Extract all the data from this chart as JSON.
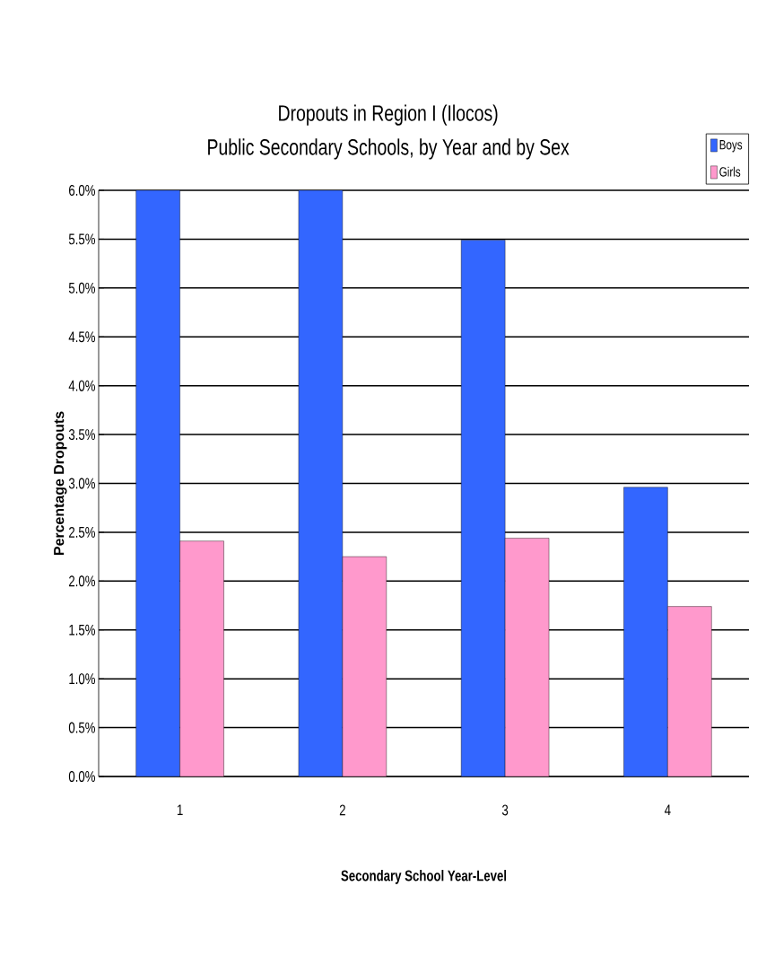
{
  "chart_data": {
    "type": "bar",
    "title": "Dropouts in Region I (Ilocos)",
    "subtitle": "Public Secondary Schools, by Year and by Sex",
    "xlabel": "Secondary School Year-Level",
    "ylabel": "Percentage  Dropouts",
    "categories": [
      "1",
      "2",
      "3",
      "4"
    ],
    "series": [
      {
        "name": "Boys",
        "color": "#3366ff",
        "values": [
          6.0,
          6.0,
          5.49,
          2.96
        ]
      },
      {
        "name": "Girls",
        "color": "#ff99cc",
        "values": [
          2.41,
          2.25,
          2.44,
          1.74
        ]
      }
    ],
    "ylim": [
      0,
      6
    ],
    "yticks": [
      {
        "value": 0,
        "label": "0.0%"
      },
      {
        "value": 0.5,
        "label": "0.5%"
      },
      {
        "value": 1,
        "label": "1.0%"
      },
      {
        "value": 1.5,
        "label": "1.5%"
      },
      {
        "value": 2,
        "label": "2.0%"
      },
      {
        "value": 2.5,
        "label": "2.5%"
      },
      {
        "value": 3,
        "label": "3.0%"
      },
      {
        "value": 3.5,
        "label": "3.5%"
      },
      {
        "value": 4,
        "label": "4.0%"
      },
      {
        "value": 4.5,
        "label": "4.5%"
      },
      {
        "value": 5,
        "label": "5.0%"
      },
      {
        "value": 5.5,
        "label": "5.5%"
      },
      {
        "value": 6,
        "label": "6.0%"
      }
    ],
    "grid": "y",
    "legend": "top right"
  }
}
